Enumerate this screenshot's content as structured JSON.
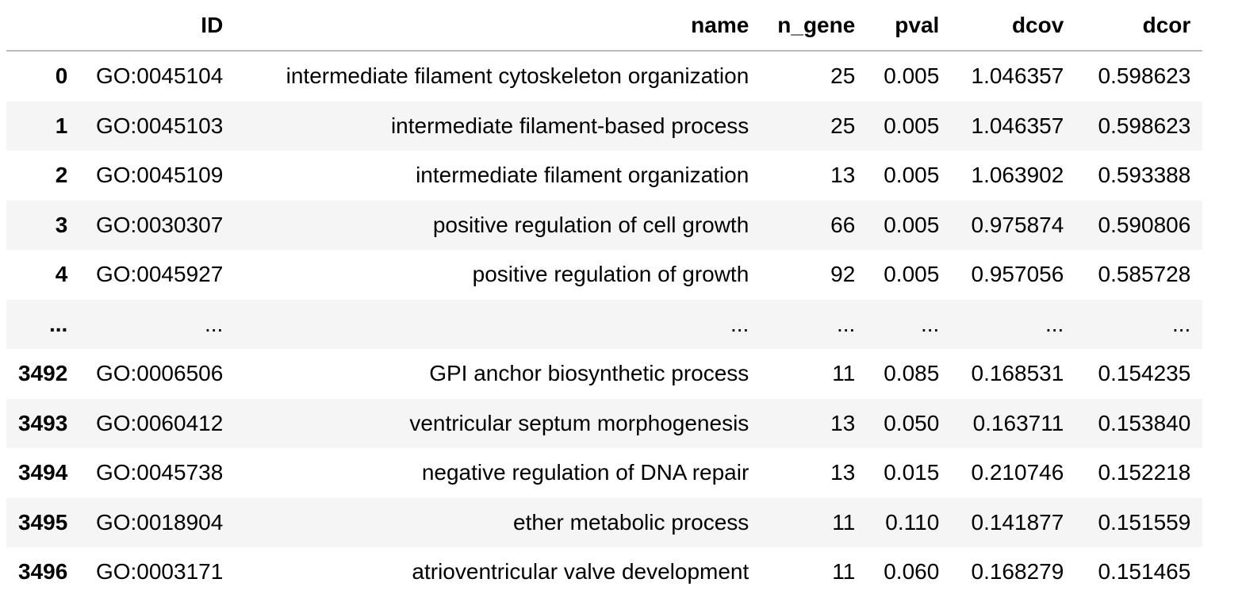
{
  "table": {
    "columns": [
      "",
      "ID",
      "name",
      "n_gene",
      "pval",
      "dcov",
      "dcor"
    ],
    "rows": [
      {
        "index": "0",
        "ID": "GO:0045104",
        "name": "intermediate filament cytoskeleton organization",
        "n_gene": "25",
        "pval": "0.005",
        "dcov": "1.046357",
        "dcor": "0.598623"
      },
      {
        "index": "1",
        "ID": "GO:0045103",
        "name": "intermediate filament-based process",
        "n_gene": "25",
        "pval": "0.005",
        "dcov": "1.046357",
        "dcor": "0.598623"
      },
      {
        "index": "2",
        "ID": "GO:0045109",
        "name": "intermediate filament organization",
        "n_gene": "13",
        "pval": "0.005",
        "dcov": "1.063902",
        "dcor": "0.593388"
      },
      {
        "index": "3",
        "ID": "GO:0030307",
        "name": "positive regulation of cell growth",
        "n_gene": "66",
        "pval": "0.005",
        "dcov": "0.975874",
        "dcor": "0.590806"
      },
      {
        "index": "4",
        "ID": "GO:0045927",
        "name": "positive regulation of growth",
        "n_gene": "92",
        "pval": "0.005",
        "dcov": "0.957056",
        "dcor": "0.585728"
      },
      {
        "index": "...",
        "ID": "...",
        "name": "...",
        "n_gene": "...",
        "pval": "...",
        "dcov": "...",
        "dcor": "..."
      },
      {
        "index": "3492",
        "ID": "GO:0006506",
        "name": "GPI anchor biosynthetic process",
        "n_gene": "11",
        "pval": "0.085",
        "dcov": "0.168531",
        "dcor": "0.154235"
      },
      {
        "index": "3493",
        "ID": "GO:0060412",
        "name": "ventricular septum morphogenesis",
        "n_gene": "13",
        "pval": "0.050",
        "dcov": "0.163711",
        "dcor": "0.153840"
      },
      {
        "index": "3494",
        "ID": "GO:0045738",
        "name": "negative regulation of DNA repair",
        "n_gene": "13",
        "pval": "0.015",
        "dcov": "0.210746",
        "dcor": "0.152218"
      },
      {
        "index": "3495",
        "ID": "GO:0018904",
        "name": "ether metabolic process",
        "n_gene": "11",
        "pval": "0.110",
        "dcov": "0.141877",
        "dcor": "0.151559"
      },
      {
        "index": "3496",
        "ID": "GO:0003171",
        "name": "atrioventricular valve development",
        "n_gene": "11",
        "pval": "0.060",
        "dcov": "0.168279",
        "dcor": "0.151465"
      }
    ]
  }
}
